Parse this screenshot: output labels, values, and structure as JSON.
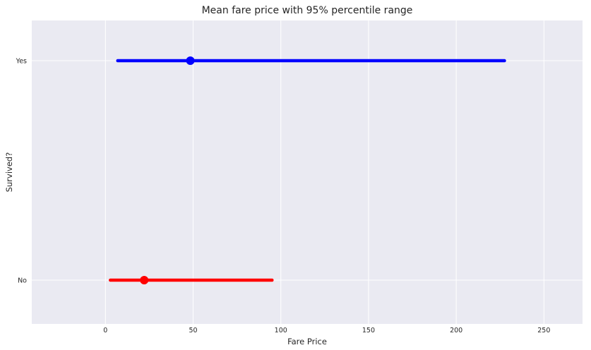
{
  "chart_data": {
    "type": "scatter",
    "title": "Mean fare price with 95% percentile range",
    "xlabel": "Fare Price",
    "ylabel": "Survived?",
    "xlim": [
      -42,
      272
    ],
    "xticks": [
      0,
      50,
      100,
      150,
      200,
      250
    ],
    "categories": [
      "Yes",
      "No"
    ],
    "series": [
      {
        "category": "Yes",
        "mean": 48.4,
        "low": 7.0,
        "high": 227.5,
        "color": "#0000ff"
      },
      {
        "category": "No",
        "mean": 22.1,
        "low": 2.8,
        "high": 95.0,
        "color": "#ff0000"
      }
    ],
    "grid": true,
    "background": "#eaeaf2",
    "grid_color": "#ffffff"
  }
}
